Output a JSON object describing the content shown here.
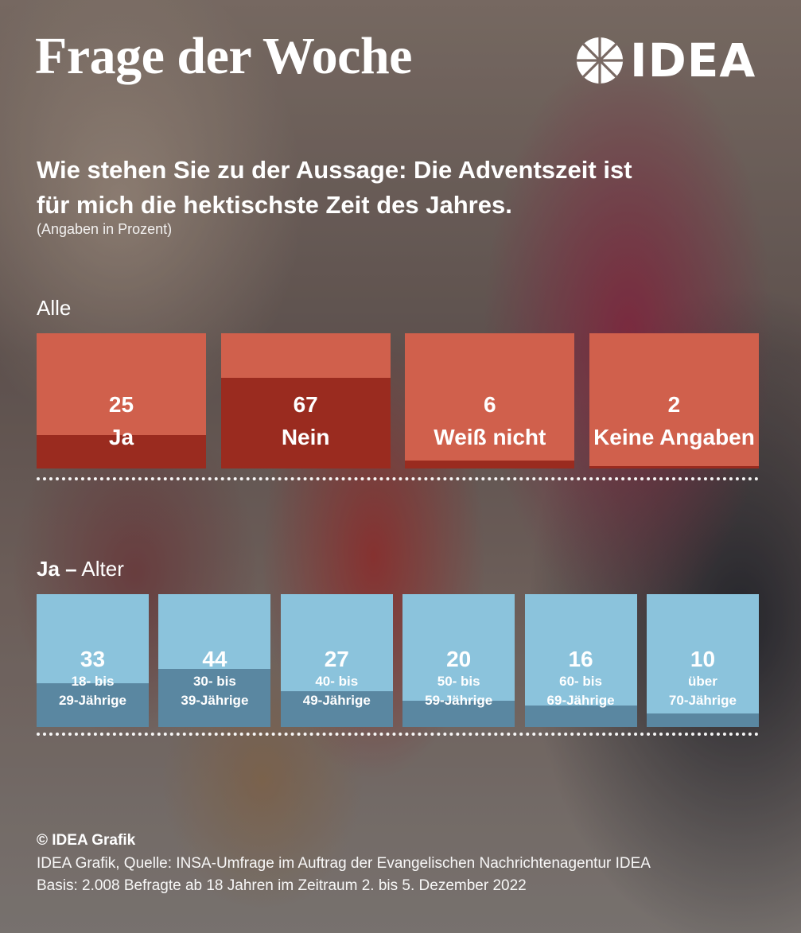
{
  "header": {
    "title": "Frage der Woche",
    "logo_text": "IDEA"
  },
  "question": {
    "text": "Wie stehen Sie zu der Aussage: Die Adventszeit ist für mich die hektischste Zeit des Jahres.",
    "note": "(Angaben in Prozent)"
  },
  "colors": {
    "all_box": "#d0604c",
    "all_fill": "#9a2b1f",
    "age_box": "#8bc3dc",
    "age_fill": "#5a87a1"
  },
  "chart_data": [
    {
      "type": "bar",
      "group_label": "Alle",
      "categories": [
        "Ja",
        "Nein",
        "Weiß nicht",
        "Keine Angaben"
      ],
      "values": [
        25,
        67,
        6,
        2
      ],
      "ylim": [
        0,
        100
      ]
    },
    {
      "type": "bar",
      "group_label_bold": "Ja –",
      "group_label": "Alter",
      "categories": [
        [
          "18- bis",
          "29-Jährige"
        ],
        [
          "30- bis",
          "39-Jährige"
        ],
        [
          "40- bis",
          "49-Jährige"
        ],
        [
          "50- bis",
          "59-Jährige"
        ],
        [
          "60- bis",
          "69-Jährige"
        ],
        [
          "über",
          "70-Jährige"
        ]
      ],
      "values": [
        33,
        44,
        27,
        20,
        16,
        10
      ],
      "ylim": [
        0,
        100
      ]
    }
  ],
  "footer": {
    "copyright": "© IDEA Grafik",
    "source": "IDEA Grafik, Quelle: INSA-Umfrage im Auftrag der Evangelischen Nachrichtenagentur IDEA",
    "basis": "Basis: 2.008 Befragte ab 18 Jahren im Zeitraum 2. bis 5. Dezember 2022"
  }
}
